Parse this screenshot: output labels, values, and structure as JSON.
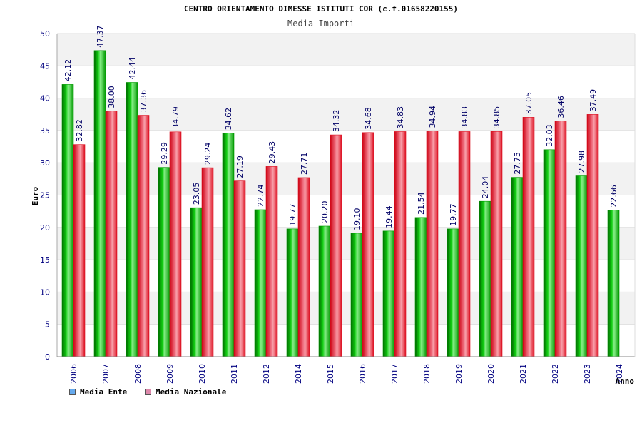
{
  "title": "CENTRO ORIENTAMENTO DIMESSE ISTITUTI COR (c.f.01658220155)",
  "subtitle": "Media Importi",
  "colors": {
    "ente": "#00bb00",
    "nazionale": "#ee2233",
    "legend_ente": "#66aaee",
    "legend_nazionale": "#dd88aa"
  },
  "legend": {
    "ente": "Media Ente",
    "nazionale": "Media Nazionale"
  },
  "chart_data": {
    "type": "bar",
    "title": "CENTRO ORIENTAMENTO DIMESSE ISTITUTI COR (c.f.01658220155)",
    "subtitle": "Media Importi",
    "xlabel": "Anno",
    "ylabel": "Euro",
    "ylim": [
      0,
      50
    ],
    "yticks": [
      0,
      5,
      10,
      15,
      20,
      25,
      30,
      35,
      40,
      45,
      50
    ],
    "categories": [
      "2006",
      "2007",
      "2008",
      "2009",
      "2010",
      "2011",
      "2012",
      "2014",
      "2015",
      "2016",
      "2017",
      "2018",
      "2019",
      "2020",
      "2021",
      "2022",
      "2023",
      "2024"
    ],
    "series": [
      {
        "name": "Media Ente",
        "values": [
          42.12,
          47.37,
          42.44,
          29.29,
          23.05,
          34.62,
          22.74,
          19.77,
          20.2,
          19.1,
          19.44,
          21.54,
          19.77,
          24.04,
          27.75,
          32.03,
          27.98,
          22.66
        ],
        "labels": [
          "42.12",
          "47.37",
          "42.44",
          "29.29",
          "23.05",
          "34.62",
          "22.74",
          "19.77",
          "20.20",
          "19.10",
          "19.44",
          "21.54",
          "19.77",
          "24.04",
          "27.75",
          "32.03",
          "27.98",
          "22.66"
        ]
      },
      {
        "name": "Media Nazionale",
        "values": [
          32.82,
          38.0,
          37.36,
          34.79,
          29.24,
          27.19,
          29.43,
          27.71,
          34.32,
          34.68,
          34.83,
          34.94,
          34.83,
          34.85,
          37.05,
          36.46,
          37.49,
          null
        ],
        "labels": [
          "32.82",
          "38.00",
          "37.36",
          "34.79",
          "29.24",
          "27.19",
          "29.43",
          "27.71",
          "34.32",
          "34.68",
          "34.83",
          "34.94",
          "34.83",
          "34.85",
          "37.05",
          "36.46",
          "37.49",
          null
        ]
      }
    ]
  }
}
